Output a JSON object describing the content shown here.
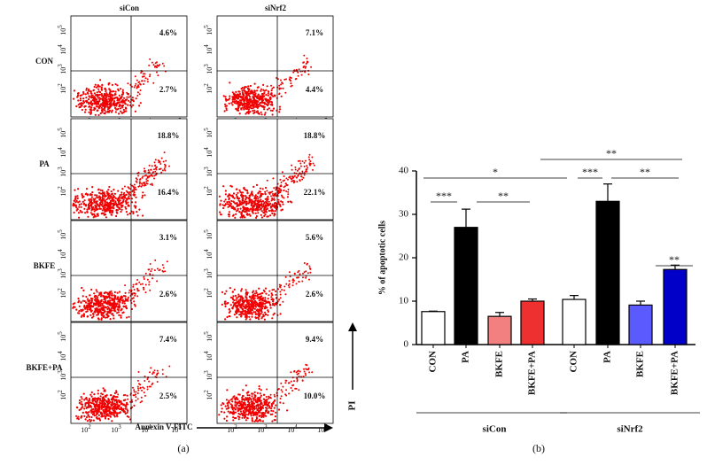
{
  "panel_a": {
    "columns": [
      "siCon",
      "siNrf2"
    ],
    "rows": [
      "CON",
      "PA",
      "BKFE",
      "BKFE+PA"
    ],
    "upper_right": [
      [
        "4.6%",
        "7.1%"
      ],
      [
        "18.8%",
        "18.8%"
      ],
      [
        "3.1%",
        "5.6%"
      ],
      [
        "7.4%",
        "9.4%"
      ]
    ],
    "lower_right": [
      [
        "2.7%",
        "4.4%"
      ],
      [
        "16.4%",
        "22.1%"
      ],
      [
        "2.6%",
        "2.6%"
      ],
      [
        "2.5%",
        "10.0%"
      ]
    ],
    "tick_base": "10",
    "x_exponents": [
      "2",
      "3",
      "4",
      "5"
    ],
    "y_exponents": [
      "5",
      "4",
      "3",
      "2"
    ],
    "x_label": "Annexin V-FITC",
    "y_label": "PI",
    "caption": "(a)"
  },
  "chart_data": {
    "type": "bar",
    "y_label": "% of apoptotic cells",
    "categories": [
      "CON",
      "PA",
      "BKFE",
      "BKFE+PA",
      "CON",
      "PA",
      "BKFE",
      "BKFE+PA"
    ],
    "values": [
      7.6,
      27,
      6.5,
      10,
      10.4,
      33,
      9.1,
      17.3
    ],
    "error": [
      0.1,
      4.2,
      0.9,
      0.5,
      0.9,
      4,
      0.9,
      1
    ],
    "colors": [
      "#ffffff",
      "#000000",
      "#f28080",
      "#ee3030",
      "#ffffff",
      "#000000",
      "#5a5aff",
      "#0000c8"
    ],
    "ylim": [
      0,
      40
    ],
    "yticks": [
      0,
      10,
      20,
      30,
      40
    ],
    "groups": [
      "siCon",
      "siNrf2"
    ],
    "annotations": [
      "**",
      "*",
      "***",
      "**",
      "***",
      "**",
      "**"
    ],
    "caption": "(b)"
  }
}
